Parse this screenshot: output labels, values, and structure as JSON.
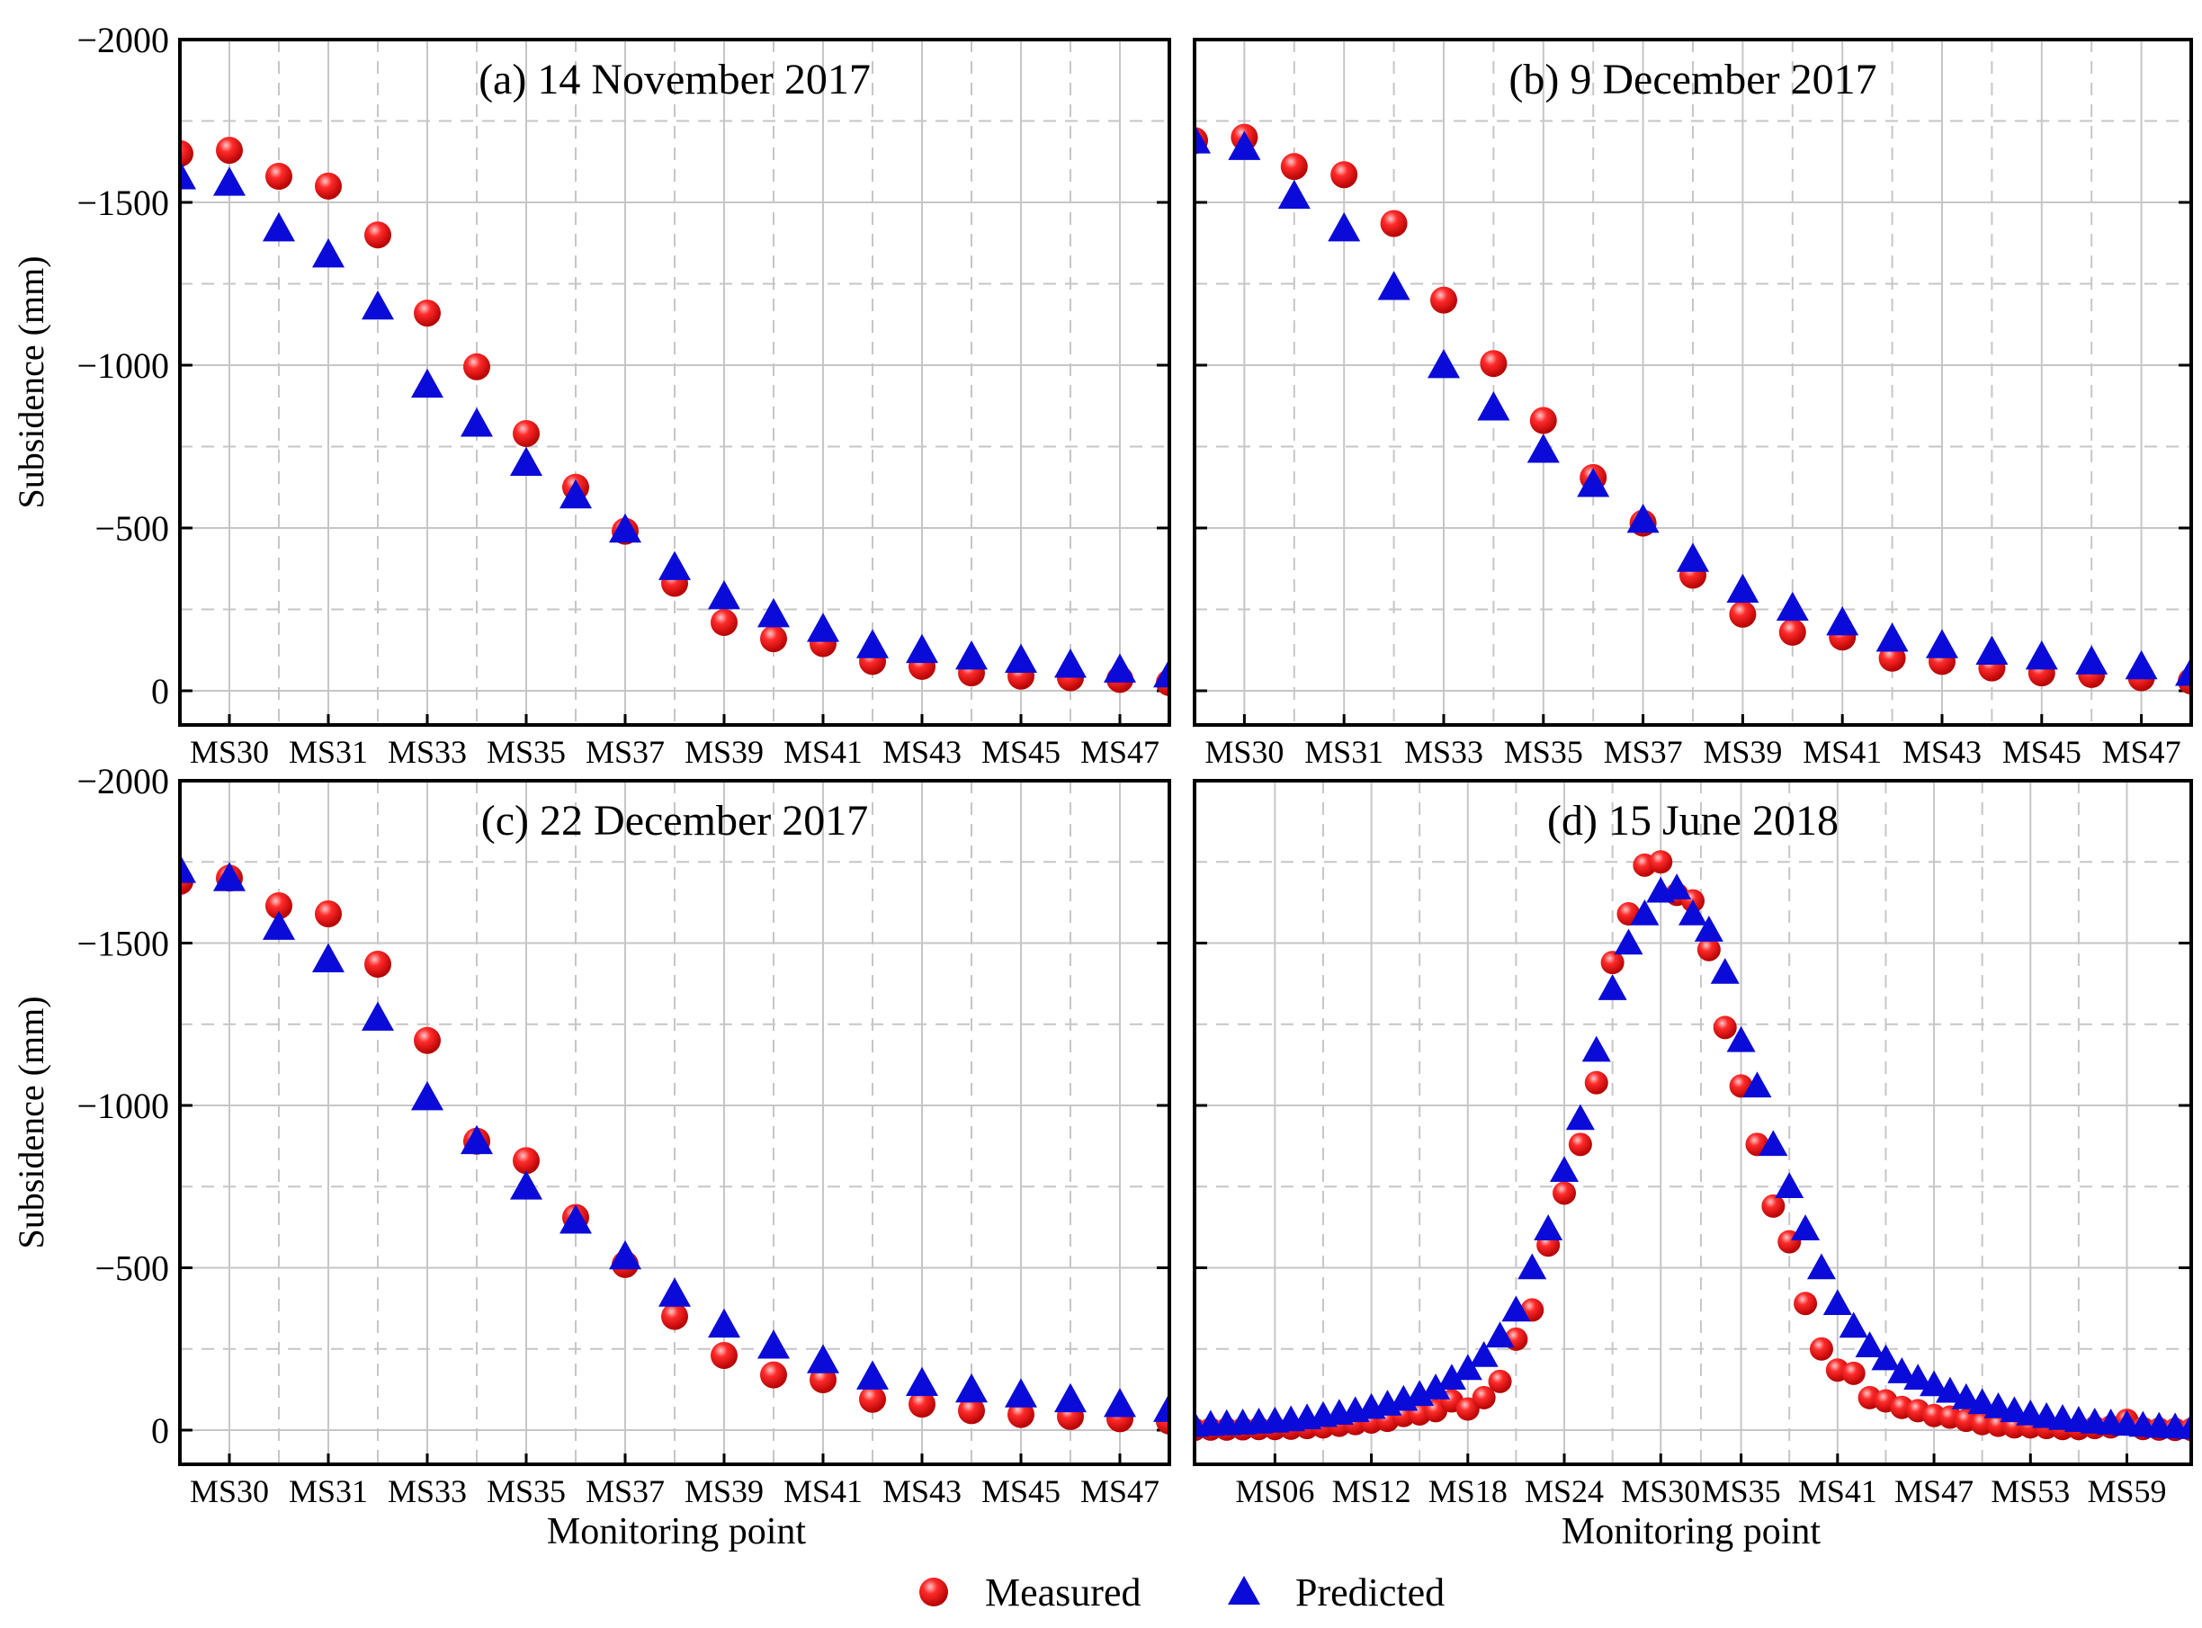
{
  "chart_data": [
    {
      "type": "scatter",
      "title": "(a) 14 November 2017",
      "xlabel": "",
      "ylabel": "Subsidence (mm)",
      "ylim": [
        0,
        -2000
      ],
      "yticks": [
        -2000,
        -1500,
        -1000,
        -500,
        0
      ],
      "ytick_labels": [
        "−2000",
        "−1500",
        "−1000",
        "−500",
        "0"
      ],
      "x_points": 21,
      "xtick_positions": [
        1,
        3,
        5,
        7,
        9,
        11,
        13,
        15,
        17,
        19
      ],
      "xtick_labels": [
        "MS30",
        "MS31",
        "MS33",
        "MS35",
        "MS37",
        "MS39",
        "MS41",
        "MS43",
        "MS45",
        "MS47"
      ],
      "series": [
        {
          "name": "Measured",
          "values": [
            -1650,
            -1660,
            -1580,
            -1550,
            -1400,
            -1160,
            -995,
            -790,
            -625,
            -490,
            -330,
            -210,
            -160,
            -145,
            -90,
            -75,
            -55,
            -45,
            -40,
            -35,
            -25
          ]
        },
        {
          "name": "Predicted",
          "values": [
            -1580,
            -1560,
            -1420,
            -1340,
            -1180,
            -940,
            -820,
            -700,
            -600,
            -495,
            -380,
            -290,
            -235,
            -190,
            -140,
            -125,
            -105,
            -95,
            -80,
            -65,
            -50
          ]
        }
      ]
    },
    {
      "type": "scatter",
      "title": "(b) 9 December 2017",
      "xlabel": "",
      "ylabel": "",
      "ylim": [
        0,
        -2000
      ],
      "yticks": [
        -2000,
        -1500,
        -1000,
        -500,
        0
      ],
      "x_points": 21,
      "xtick_positions": [
        1,
        3,
        5,
        7,
        9,
        11,
        13,
        15,
        17,
        19
      ],
      "xtick_labels": [
        "MS30",
        "MS31",
        "MS33",
        "MS35",
        "MS37",
        "MS39",
        "MS41",
        "MS43",
        "MS45",
        "MS47"
      ],
      "series": [
        {
          "name": "Measured",
          "values": [
            -1690,
            -1700,
            -1610,
            -1585,
            -1435,
            -1200,
            -1005,
            -830,
            -655,
            -515,
            -355,
            -235,
            -180,
            -165,
            -100,
            -90,
            -70,
            -55,
            -50,
            -40,
            -30
          ]
        },
        {
          "name": "Predicted",
          "values": [
            -1690,
            -1670,
            -1520,
            -1420,
            -1240,
            -1000,
            -870,
            -740,
            -635,
            -525,
            -405,
            -310,
            -255,
            -210,
            -160,
            -140,
            -120,
            -105,
            -90,
            -75,
            -55
          ]
        }
      ]
    },
    {
      "type": "scatter",
      "title": "(c) 22 December 2017",
      "xlabel": "Monitoring point",
      "ylabel": "Subsidence (mm)",
      "ylim": [
        0,
        -2000
      ],
      "yticks": [
        -2000,
        -1500,
        -1000,
        -500,
        0
      ],
      "ytick_labels": [
        "−2000",
        "−1500",
        "−1000",
        "−500",
        "0"
      ],
      "x_points": 21,
      "xtick_positions": [
        1,
        3,
        5,
        7,
        9,
        11,
        13,
        15,
        17,
        19
      ],
      "xtick_labels": [
        "MS30",
        "MS31",
        "MS33",
        "MS35",
        "MS37",
        "MS39",
        "MS41",
        "MS43",
        "MS45",
        "MS47"
      ],
      "series": [
        {
          "name": "Measured",
          "values": [
            -1690,
            -1700,
            -1615,
            -1590,
            -1435,
            -1200,
            -890,
            -830,
            -655,
            -510,
            -350,
            -230,
            -170,
            -155,
            -95,
            -80,
            -60,
            -48,
            -42,
            -35,
            -28
          ]
        },
        {
          "name": "Predicted",
          "values": [
            -1725,
            -1700,
            -1550,
            -1450,
            -1270,
            -1025,
            -890,
            -750,
            -645,
            -535,
            -420,
            -325,
            -260,
            -215,
            -165,
            -145,
            -125,
            -110,
            -95,
            -80,
            -65
          ]
        }
      ]
    },
    {
      "type": "scatter",
      "title": "(d) 15 June 2018",
      "xlabel": "Monitoring point",
      "ylabel": "",
      "ylim": [
        0,
        -2000
      ],
      "yticks": [
        -2000,
        -1500,
        -1000,
        -500,
        0
      ],
      "x_points": 63,
      "xtick_positions": [
        5,
        11,
        17,
        23,
        29,
        34,
        40,
        46,
        52,
        58
      ],
      "xtick_labels": [
        "MS06",
        "MS12",
        "MS18",
        "MS24",
        "MS30",
        "MS35",
        "MS41",
        "MS47",
        "MS53",
        "MS59"
      ],
      "series": [
        {
          "name": "Measured",
          "values": [
            -2,
            -3,
            -3,
            -4,
            -5,
            -5,
            -6,
            -8,
            -10,
            -15,
            -20,
            -25,
            -30,
            -45,
            -50,
            -60,
            -90,
            -65,
            -100,
            -150,
            -280,
            -370,
            -570,
            -730,
            -880,
            -1070,
            -1440,
            -1590,
            -1740,
            -1750,
            -1650,
            -1630,
            -1480,
            -1240,
            -1060,
            -880,
            -690,
            -580,
            -390,
            -250,
            -185,
            -175,
            -100,
            -90,
            -70,
            -60,
            -45,
            -40,
            -30,
            -20,
            -15,
            -10,
            -10,
            -8,
            -5,
            -5,
            -8,
            -10,
            -30,
            -5,
            -3,
            -2,
            -2
          ]
        },
        {
          "name": "Predicted",
          "values": [
            -15,
            -18,
            -20,
            -22,
            -25,
            -28,
            -32,
            -38,
            -45,
            -52,
            -60,
            -70,
            -80,
            -95,
            -110,
            -130,
            -160,
            -190,
            -230,
            -290,
            -370,
            -500,
            -620,
            -800,
            -960,
            -1170,
            -1360,
            -1500,
            -1590,
            -1660,
            -1670,
            -1590,
            -1540,
            -1410,
            -1200,
            -1060,
            -880,
            -750,
            -620,
            -500,
            -390,
            -320,
            -260,
            -220,
            -180,
            -160,
            -140,
            -120,
            -100,
            -85,
            -72,
            -60,
            -50,
            -42,
            -36,
            -30,
            -25,
            -22,
            -18,
            -15,
            -12,
            -10,
            -8
          ]
        }
      ]
    }
  ],
  "legend": {
    "measured_label": "Measured",
    "predicted_label": "Predicted",
    "measured_color": "#e8141b",
    "predicted_color": "#0b0bd9"
  }
}
